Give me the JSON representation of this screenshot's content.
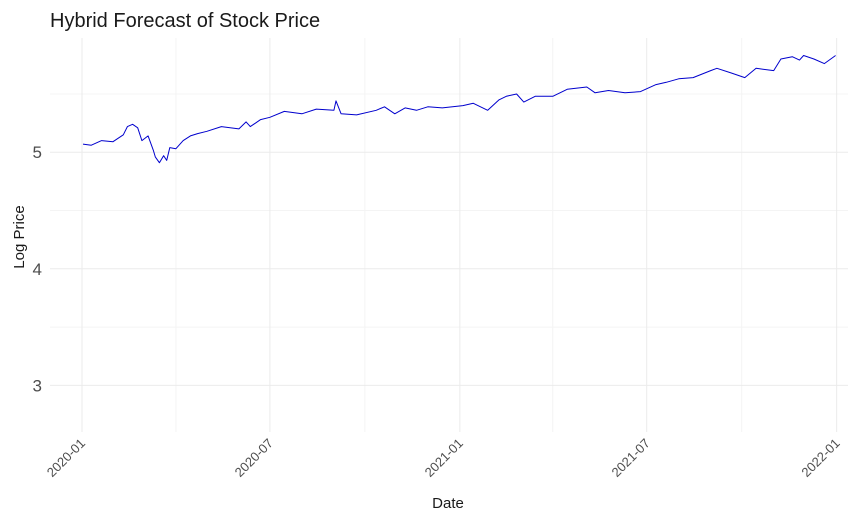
{
  "chart_data": {
    "type": "line",
    "title": "Hybrid Forecast of Stock Price",
    "xlabel": "Date",
    "ylabel": "Log Price",
    "xlim": [
      "2019-12-01",
      "2022-01-12"
    ],
    "ylim": [
      2.6,
      5.98
    ],
    "x_ticks": [
      "2020-01",
      "2020-07",
      "2021-01",
      "2021-07",
      "2022-01"
    ],
    "y_ticks": [
      3,
      4,
      5
    ],
    "grid": true,
    "legend": "none",
    "colors": {
      "line": "#0000cd",
      "grid": "#ebebeb"
    },
    "series": [
      {
        "x": [
          "2020-01-02",
          "2020-01-10",
          "2020-01-20",
          "2020-01-31",
          "2020-02-10",
          "2020-02-14",
          "2020-02-19",
          "2020-02-24",
          "2020-02-28",
          "2020-03-05",
          "2020-03-10",
          "2020-03-12",
          "2020-03-16",
          "2020-03-20",
          "2020-03-23",
          "2020-03-26",
          "2020-04-01",
          "2020-04-08",
          "2020-04-15",
          "2020-04-22",
          "2020-05-01",
          "2020-05-15",
          "2020-06-01",
          "2020-06-08",
          "2020-06-12",
          "2020-06-22",
          "2020-07-01",
          "2020-07-15",
          "2020-08-01",
          "2020-08-15",
          "2020-09-01",
          "2020-09-03",
          "2020-09-08",
          "2020-09-23",
          "2020-10-12",
          "2020-10-20",
          "2020-10-30",
          "2020-11-09",
          "2020-11-20",
          "2020-12-01",
          "2020-12-15",
          "2021-01-04",
          "2021-01-14",
          "2021-01-28",
          "2021-02-08",
          "2021-02-15",
          "2021-02-25",
          "2021-03-04",
          "2021-03-15",
          "2021-04-01",
          "2021-04-15",
          "2021-05-04",
          "2021-05-12",
          "2021-05-25",
          "2021-06-10",
          "2021-06-25",
          "2021-07-10",
          "2021-07-20",
          "2021-08-01",
          "2021-08-15",
          "2021-09-01",
          "2021-09-07",
          "2021-09-21",
          "2021-10-04",
          "2021-10-15",
          "2021-11-01",
          "2021-11-08",
          "2021-11-19",
          "2021-11-26",
          "2021-11-30",
          "2021-12-10",
          "2021-12-20",
          "2021-12-31"
        ],
        "y": [
          5.07,
          5.06,
          5.1,
          5.09,
          5.15,
          5.22,
          5.24,
          5.21,
          5.1,
          5.14,
          5.02,
          4.96,
          4.91,
          4.97,
          4.93,
          5.04,
          5.03,
          5.1,
          5.14,
          5.16,
          5.18,
          5.22,
          5.2,
          5.26,
          5.22,
          5.28,
          5.3,
          5.35,
          5.33,
          5.37,
          5.36,
          5.44,
          5.33,
          5.32,
          5.36,
          5.39,
          5.33,
          5.38,
          5.36,
          5.39,
          5.38,
          5.4,
          5.42,
          5.36,
          5.45,
          5.48,
          5.5,
          5.43,
          5.48,
          5.48,
          5.54,
          5.56,
          5.51,
          5.53,
          5.51,
          5.52,
          5.58,
          5.6,
          5.63,
          5.64,
          5.7,
          5.72,
          5.68,
          5.64,
          5.72,
          5.7,
          5.8,
          5.82,
          5.79,
          5.83,
          5.8,
          5.76,
          5.83
        ]
      }
    ]
  }
}
